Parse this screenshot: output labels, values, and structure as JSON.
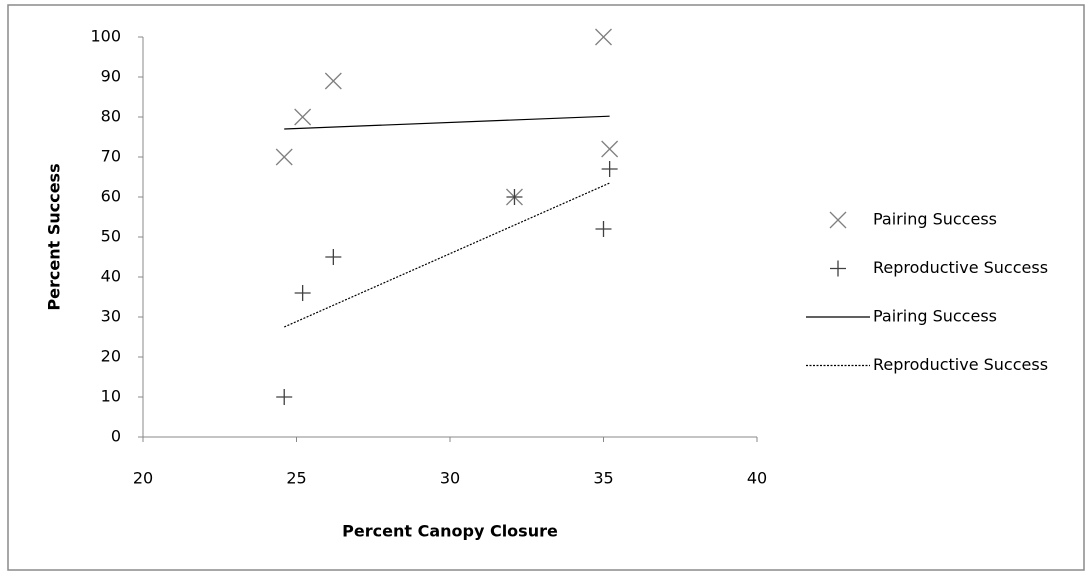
{
  "chart_data": {
    "type": "scatter",
    "xlabel": "Percent Canopy Closure",
    "ylabel": "Percent Success",
    "xlim": [
      20,
      40
    ],
    "xticks": [
      20,
      25,
      30,
      35,
      40
    ],
    "ylim": [
      0,
      100
    ],
    "yticks": [
      0,
      10,
      20,
      30,
      40,
      50,
      60,
      70,
      80,
      90,
      100
    ],
    "grid": false,
    "legend": "right",
    "series": [
      {
        "name": "Pairing Success",
        "color": "#808080",
        "marker": "x",
        "x": [
          24.6,
          25.2,
          26.2,
          32.1,
          35.0,
          35.2
        ],
        "values": [
          70,
          80,
          89,
          60,
          100,
          72
        ]
      },
      {
        "name": "Reproductive Success",
        "color": "#404040",
        "marker": "+",
        "x": [
          24.6,
          25.2,
          26.2,
          32.1,
          35.0,
          35.2
        ],
        "values": [
          10,
          36,
          45,
          60,
          52,
          67
        ]
      },
      {
        "name": "Pairing Success",
        "color": "#000000",
        "line_style": "solid",
        "x": [
          24.6,
          35.2
        ],
        "values": [
          77,
          80.2
        ]
      },
      {
        "name": "Reproductive Success",
        "color": "#000000",
        "line_style": "dotted",
        "x": [
          24.6,
          35.2
        ],
        "values": [
          27.5,
          63.5
        ]
      }
    ]
  }
}
